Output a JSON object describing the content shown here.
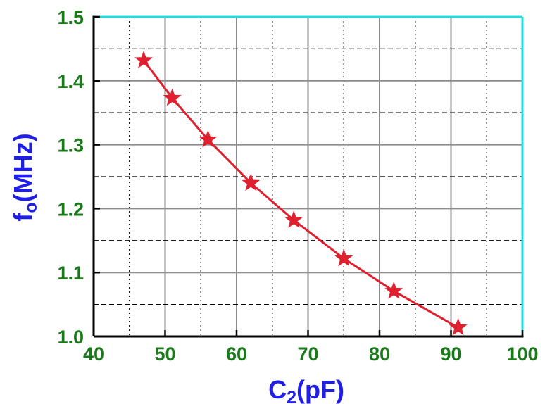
{
  "chart_data": {
    "type": "line",
    "title": "",
    "xlabel": {
      "main": "C",
      "sub": "2",
      "suffix": "(pF)"
    },
    "ylabel": {
      "main": "f",
      "sub": "o",
      "suffix": "(MHz)"
    },
    "xlim": [
      40,
      100
    ],
    "ylim": [
      1.0,
      1.5
    ],
    "xticks": [
      "40",
      "50",
      "60",
      "70",
      "80",
      "90",
      "100"
    ],
    "yticks": [
      "1.0",
      "1.1",
      "1.2",
      "1.3",
      "1.4",
      "1.5"
    ],
    "x_major_step": 10,
    "x_minor_step": 5,
    "y_major_step": 0.1,
    "y_minor_step": 0.05,
    "grid": true,
    "series": [
      {
        "marker": "star",
        "color": "#e0202e",
        "x": [
          47,
          51,
          56,
          62,
          68,
          75,
          82,
          91
        ],
        "y": [
          1.432,
          1.373,
          1.308,
          1.24,
          1.182,
          1.122,
          1.071,
          1.014
        ]
      }
    ],
    "colors": {
      "tick_label": "#1a7a1a",
      "axis_title": "#1e1ee6",
      "frame_top_right": "#22dddd",
      "frame_bottom_left": "#000000",
      "major_grid": "#8c8c8c",
      "minor_grid": "#000000"
    }
  }
}
